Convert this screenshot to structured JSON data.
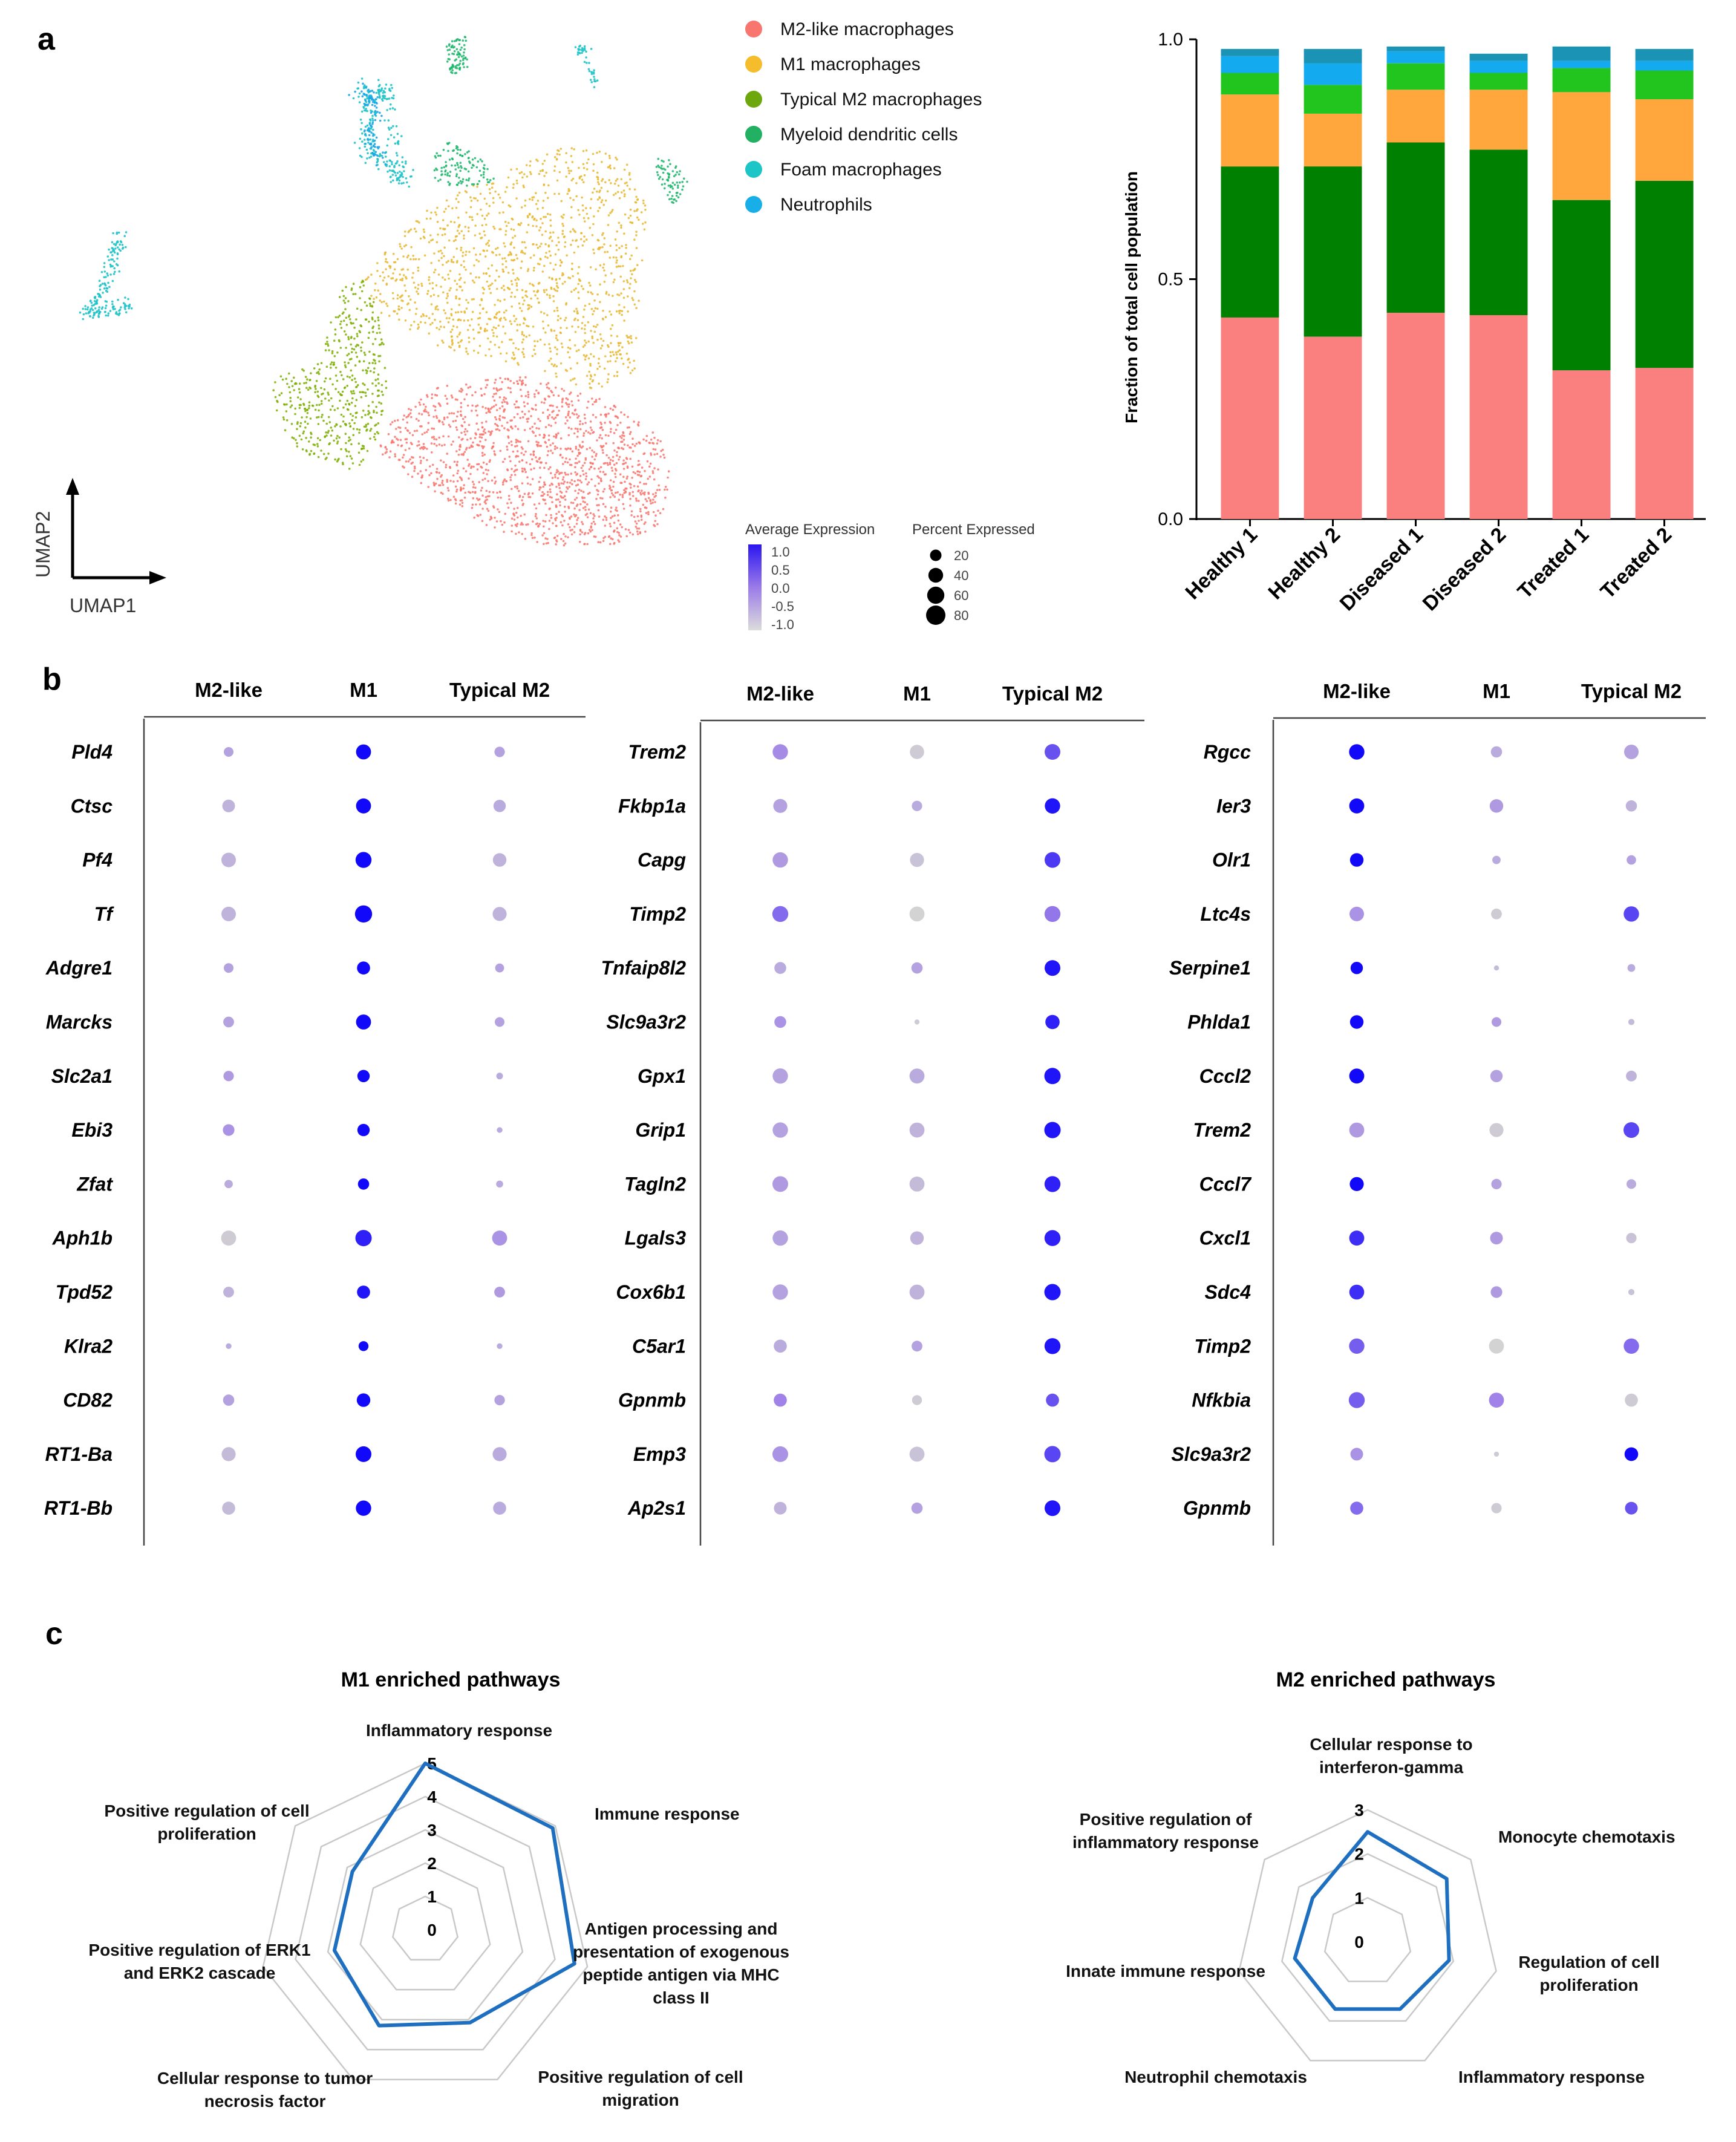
{
  "panel_labels": {
    "a": "a",
    "b": "b",
    "c": "c"
  },
  "umap": {
    "axis_x": "UMAP1",
    "axis_y": "UMAP2",
    "clusters": [
      {
        "name": "M2-like macrophages",
        "color": "#f8766d"
      },
      {
        "name": "M1 macrophages",
        "color": "#e8b730"
      },
      {
        "name": "Typical M2 macrophages",
        "color": "#7cae00"
      },
      {
        "name": "Myeloid dendritic cells",
        "color": "#19b569"
      },
      {
        "name": "Foam macrophages",
        "color": "#1fc3c9"
      },
      {
        "name": "Neutrophils",
        "color": "#1aa6e8"
      }
    ]
  },
  "legend": {
    "items": [
      {
        "label": "M2-like macrophages",
        "color": "#f8766d"
      },
      {
        "label": "M1 macrophages",
        "color": "#f5bd2b"
      },
      {
        "label": "Typical M2 macrophages",
        "color": "#6ca80d"
      },
      {
        "label": "Myeloid dendritic cells",
        "color": "#22b063"
      },
      {
        "label": "Foam macrophages",
        "color": "#1cc6c6"
      },
      {
        "label": "Neutrophils",
        "color": "#18aee8"
      }
    ]
  },
  "dot_legend": {
    "avg_title": "Average Expression",
    "avg_ticks": [
      "1.0",
      "0.5",
      "0.0",
      "-0.5",
      "-1.0"
    ],
    "pct_title": "Percent Expressed",
    "pct_ticks": [
      "20",
      "40",
      "60",
      "80"
    ],
    "color_low": "#d3d3d3",
    "color_high": "#0000ff"
  },
  "chart_data": [
    {
      "type": "bar",
      "stacked": true,
      "title": "",
      "ylabel": "Fraction of total cell population",
      "xlabel": "",
      "ylim": [
        0,
        1.0
      ],
      "yticks": [
        "0.0",
        "0.5",
        "1.0"
      ],
      "categories": [
        "Healthy 1",
        "Healthy 2",
        "Diseased 1",
        "Diseased 2",
        "Treated 1",
        "Treated 2"
      ],
      "series": [
        {
          "name": "M2-like macrophages",
          "color": "#fa7f7f",
          "values": [
            0.42,
            0.38,
            0.43,
            0.425,
            0.31,
            0.315
          ]
        },
        {
          "name": "Typical M2 macrophages",
          "color": "#008000",
          "values": [
            0.315,
            0.355,
            0.355,
            0.345,
            0.355,
            0.39
          ]
        },
        {
          "name": "M1 macrophages",
          "color": "#ffa63d",
          "values": [
            0.15,
            0.11,
            0.11,
            0.125,
            0.225,
            0.17
          ]
        },
        {
          "name": "Myeloid dendritic cells",
          "color": "#22c41e",
          "values": [
            0.045,
            0.06,
            0.055,
            0.035,
            0.05,
            0.06
          ]
        },
        {
          "name": "Neutrophils",
          "color": "#13aaf0",
          "values": [
            0.035,
            0.045,
            0.025,
            0.025,
            0.015,
            0.02
          ]
        },
        {
          "name": "Foam macrophages",
          "color": "#1a93b4",
          "values": [
            0.015,
            0.03,
            0.01,
            0.015,
            0.03,
            0.025
          ]
        }
      ]
    },
    {
      "type": "dot",
      "columns": [
        "M2-like",
        "M1",
        "Typical M2"
      ],
      "genes": [
        "Pld4",
        "Ctsc",
        "Pf4",
        "Tf",
        "Adgre1",
        "Marcks",
        "Slc2a1",
        "Ebi3",
        "Zfat",
        "Aph1b",
        "Tpd52",
        "Klra2",
        "CD82",
        "RT1-Ba",
        "RT1-Bb"
      ],
      "avg_expression": [
        [
          -0.4,
          1.0,
          -0.4
        ],
        [
          -0.6,
          1.0,
          -0.5
        ],
        [
          -0.6,
          1.0,
          -0.6
        ],
        [
          -0.6,
          1.0,
          -0.6
        ],
        [
          -0.4,
          1.0,
          -0.4
        ],
        [
          -0.4,
          1.0,
          -0.4
        ],
        [
          -0.3,
          1.0,
          -0.5
        ],
        [
          -0.2,
          1.0,
          -0.5
        ],
        [
          -0.5,
          1.0,
          -0.5
        ],
        [
          -0.9,
          0.8,
          -0.2
        ],
        [
          -0.6,
          0.9,
          -0.3
        ],
        [
          -0.5,
          1.0,
          -0.5
        ],
        [
          -0.4,
          1.0,
          -0.4
        ],
        [
          -0.7,
          1.0,
          -0.5
        ],
        [
          -0.7,
          1.0,
          -0.5
        ]
      ],
      "pct_expressed": [
        [
          15,
          45,
          18
        ],
        [
          30,
          45,
          28
        ],
        [
          42,
          52,
          35
        ],
        [
          42,
          62,
          38
        ],
        [
          15,
          32,
          12
        ],
        [
          20,
          45,
          15
        ],
        [
          18,
          28,
          5
        ],
        [
          24,
          28,
          3
        ],
        [
          10,
          22,
          6
        ],
        [
          45,
          55,
          45
        ],
        [
          20,
          32,
          20
        ],
        [
          3,
          16,
          3
        ],
        [
          22,
          35,
          18
        ],
        [
          38,
          50,
          38
        ],
        [
          32,
          48,
          32
        ]
      ]
    },
    {
      "type": "dot",
      "columns": [
        "M2-like",
        "M1",
        "Typical M2"
      ],
      "genes": [
        "Trem2",
        "Fkbp1a",
        "Capg",
        "Timp2",
        "Tnfaip8l2",
        "Slc9a3r2",
        "Gpx1",
        "Grip1",
        "Tagln2",
        "Lgals3",
        "Cox6b1",
        "C5ar1",
        "Gpnmb",
        "Emp3",
        "Ap2s1"
      ],
      "avg_expression": [
        [
          -0.1,
          -0.9,
          0.4
        ],
        [
          -0.4,
          -0.5,
          0.9
        ],
        [
          -0.3,
          -0.8,
          0.6
        ],
        [
          0.2,
          -1.0,
          0.1
        ],
        [
          -0.5,
          -0.4,
          0.9
        ],
        [
          -0.2,
          -0.9,
          0.8
        ],
        [
          -0.4,
          -0.5,
          0.9
        ],
        [
          -0.4,
          -0.6,
          0.9
        ],
        [
          -0.3,
          -0.7,
          0.8
        ],
        [
          -0.4,
          -0.6,
          0.8
        ],
        [
          -0.4,
          -0.6,
          0.9
        ],
        [
          -0.5,
          -0.4,
          0.9
        ],
        [
          0.0,
          -0.9,
          0.4
        ],
        [
          -0.2,
          -0.8,
          0.5
        ],
        [
          -0.6,
          -0.4,
          0.9
        ]
      ],
      "pct_expressed": [
        [
          48,
          40,
          50
        ],
        [
          38,
          18,
          48
        ],
        [
          48,
          38,
          50
        ],
        [
          52,
          45,
          52
        ],
        [
          25,
          22,
          50
        ],
        [
          25,
          2,
          40
        ],
        [
          48,
          45,
          55
        ],
        [
          48,
          45,
          55
        ],
        [
          50,
          45,
          52
        ],
        [
          48,
          35,
          52
        ],
        [
          48,
          45,
          55
        ],
        [
          32,
          20,
          52
        ],
        [
          32,
          16,
          32
        ],
        [
          50,
          45,
          55
        ],
        [
          30,
          22,
          50
        ]
      ]
    },
    {
      "type": "dot",
      "columns": [
        "M2-like",
        "M1",
        "Typical M2"
      ],
      "genes": [
        "Rgcc",
        "Ier3",
        "Olr1",
        "Ltc4s",
        "Serpine1",
        "Phlda1",
        "Cccl2",
        "Trem2",
        "Cccl7",
        "Cxcl1",
        "Sdc4",
        "Timp2",
        "Nfkbia",
        "Slc9a3r2",
        "Gpnmb"
      ],
      "avg_expression": [
        [
          1.0,
          -0.5,
          -0.4
        ],
        [
          1.0,
          -0.3,
          -0.6
        ],
        [
          1.0,
          -0.5,
          -0.4
        ],
        [
          -0.2,
          -0.9,
          0.5
        ],
        [
          1.0,
          -0.7,
          -0.5
        ],
        [
          1.0,
          -0.3,
          -0.7
        ],
        [
          1.0,
          -0.4,
          -0.6
        ],
        [
          -0.3,
          -0.9,
          0.5
        ],
        [
          1.0,
          -0.4,
          -0.5
        ],
        [
          0.7,
          -0.3,
          -0.8
        ],
        [
          0.7,
          -0.3,
          -0.8
        ],
        [
          0.3,
          -1.0,
          0.2
        ],
        [
          0.3,
          0.0,
          -0.9
        ],
        [
          -0.2,
          -0.9,
          1.0
        ],
        [
          0.2,
          -0.9,
          0.4
        ]
      ],
      "pct_expressed": [
        [
          48,
          22,
          42
        ],
        [
          45,
          35,
          22
        ],
        [
          35,
          10,
          14
        ],
        [
          42,
          20,
          48
        ],
        [
          28,
          2,
          8
        ],
        [
          35,
          15,
          4
        ],
        [
          45,
          28,
          20
        ],
        [
          45,
          38,
          50
        ],
        [
          38,
          18,
          15
        ],
        [
          45,
          30,
          18
        ],
        [
          44,
          24,
          4
        ],
        [
          48,
          45,
          48
        ],
        [
          52,
          45,
          32
        ],
        [
          30,
          2,
          36
        ],
        [
          32,
          18,
          30
        ]
      ]
    },
    {
      "type": "radar",
      "title": "M1 enriched pathways",
      "axes": [
        "Inflammatory response",
        "Immune response",
        "Antigen processing and presentation of exogenous peptide antigen via MHC class II",
        "Positive regulation of cell migration",
        "Cellular response to tumor necrosis factor",
        "Positive regulation of ERK1 and ERK2 cascade",
        "Positive regulation of cell proliferation"
      ],
      "axis_label_lines": [
        [
          "Inflammatory response"
        ],
        [
          "Immune response"
        ],
        [
          "Antigen processing and",
          "presentation of exogenous",
          "peptide antigen via MHC",
          "class II"
        ],
        [
          "Positive regulation of cell",
          "migration"
        ],
        [
          "Cellular response to tumor",
          "necrosis factor"
        ],
        [
          "Positive regulation of ERK1",
          "and ERK2 cascade"
        ],
        [
          "Positive regulation of cell",
          "proliferation"
        ]
      ],
      "values": [
        5.0,
        4.9,
        4.6,
        3.1,
        3.2,
        2.8,
        2.8
      ],
      "rlim": [
        0,
        5
      ],
      "rticks": [
        "0",
        "1",
        "2",
        "3",
        "4",
        "5"
      ]
    },
    {
      "type": "radar",
      "title": "M2 enriched pathways",
      "axes": [
        "Cellular response to interferon-gamma",
        "Monocyte chemotaxis",
        "Regulation of cell proliferation",
        "Inflammatory response",
        "Neutrophil chemotaxis",
        "Innate immune response",
        "Positive regulation of inflammatory response"
      ],
      "axis_label_lines": [
        [
          "Cellular response to",
          "interferon-gamma"
        ],
        [
          "Monocyte chemotaxis"
        ],
        [
          "Regulation of cell",
          "proliferation"
        ],
        [
          "Inflammatory response"
        ],
        [
          "Neutrophil chemotaxis"
        ],
        [
          "Innate immune response"
        ],
        [
          "Positive regulation of",
          "inflammatory response"
        ]
      ],
      "values": [
        2.5,
        2.3,
        1.9,
        1.7,
        1.7,
        1.7,
        1.6
      ],
      "rlim": [
        0,
        3
      ],
      "rticks": [
        "0",
        "1",
        "2",
        "3"
      ]
    }
  ]
}
